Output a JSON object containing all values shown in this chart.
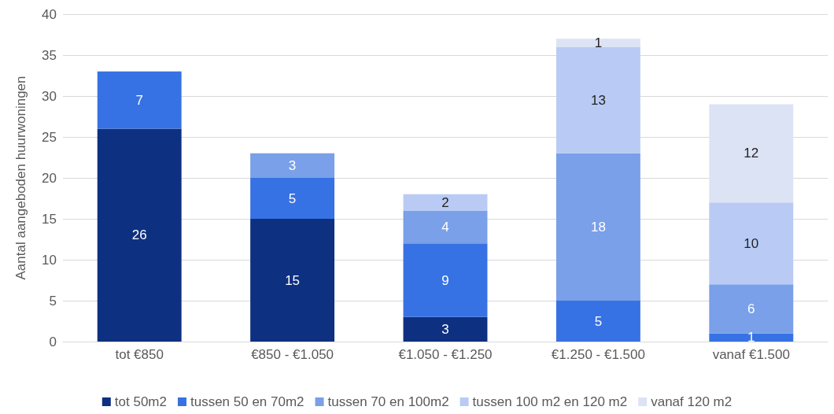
{
  "chart_data": {
    "type": "bar",
    "stacked": true,
    "ylabel": "Aantal aangeboden huurwoningen",
    "categories": [
      "tot €850",
      "€850 - €1.050",
      "€1.050 - €1.250",
      "€1.250 - €1.500",
      "vanaf €1.500"
    ],
    "series": [
      {
        "name": "tot 50m2",
        "color": "#0e3080",
        "values": [
          26,
          15,
          3,
          null,
          null
        ]
      },
      {
        "name": "tussen 50 en 70m2",
        "color": "#3672e3",
        "values": [
          7,
          5,
          9,
          5,
          1
        ]
      },
      {
        "name": "tussen 70 en 100m2",
        "color": "#79a0e8",
        "values": [
          null,
          3,
          4,
          18,
          6
        ]
      },
      {
        "name": "tussen 100 m2 en 120 m2",
        "color": "#b9cbf4",
        "values": [
          null,
          null,
          2,
          13,
          10
        ]
      },
      {
        "name": "vanaf 120 m2",
        "color": "#dbe3f4",
        "values": [
          null,
          null,
          null,
          1,
          12
        ]
      }
    ],
    "ylim": [
      0,
      40
    ],
    "yticks": [
      0,
      5,
      10,
      15,
      20,
      25,
      30,
      35,
      40
    ],
    "grid": "y",
    "legend": "bottom",
    "data_labels": true
  }
}
